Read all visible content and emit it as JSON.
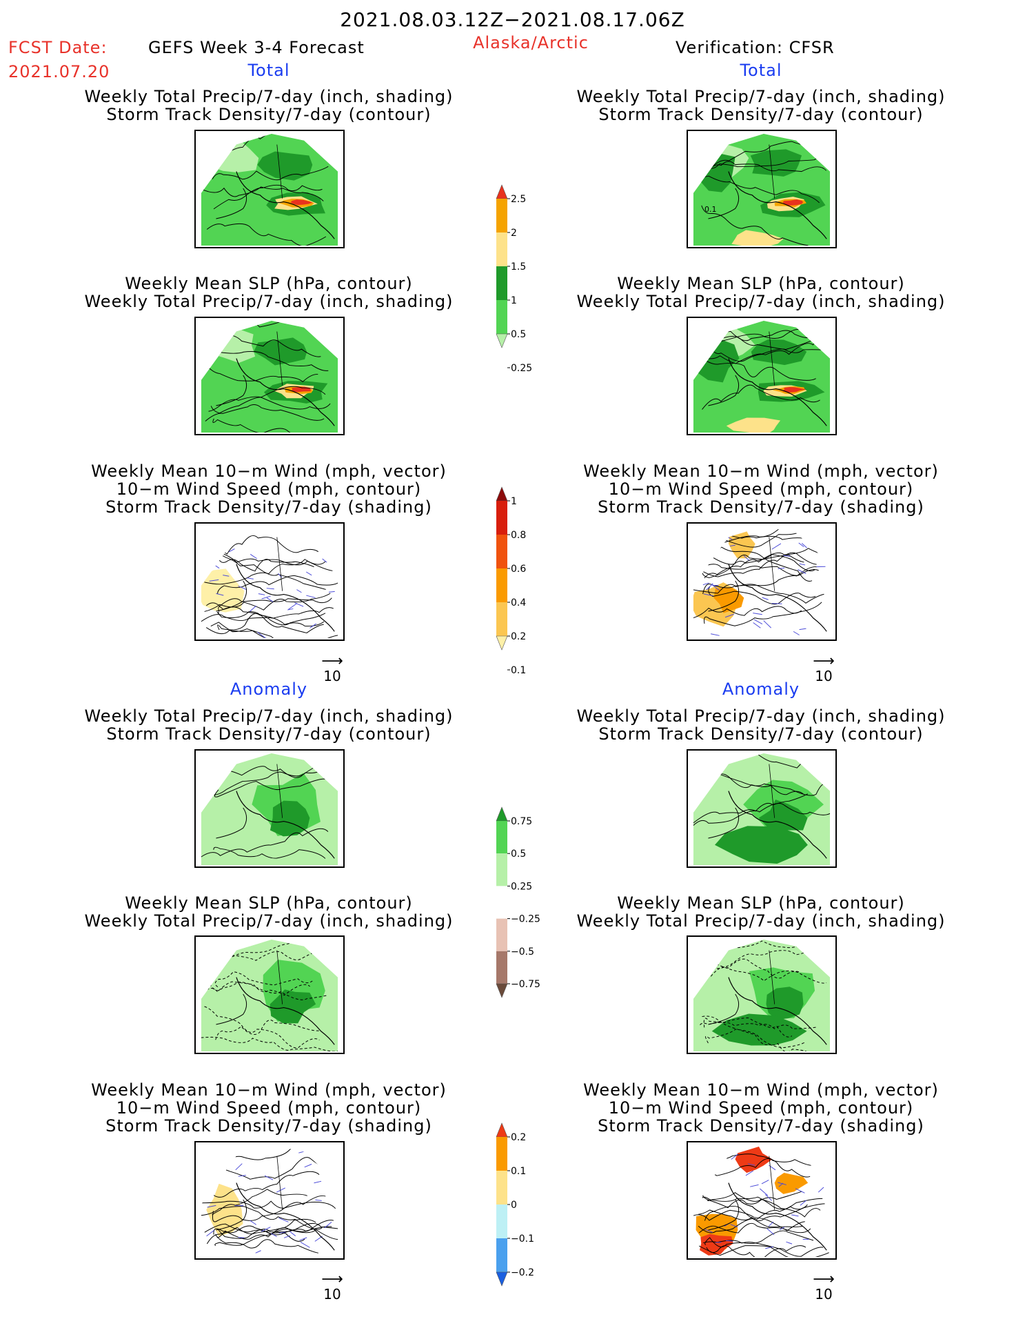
{
  "header": {
    "date_range": "2021.08.03.12Z−2021.08.17.06Z",
    "fcst_label": "FCST Date:",
    "fcst_date": "2021.07.20",
    "forecast_title": "GEFS Week 3-4 Forecast",
    "region": "Alaska/Arctic",
    "verification": "Verification: CFSR"
  },
  "sections": {
    "total": "Total",
    "anomaly": "Anomaly"
  },
  "panel_titles": {
    "precip_storm": [
      "Weekly Total Precip/7-day (inch, shading)",
      "Storm Track Density/7-day (contour)"
    ],
    "slp_precip": [
      "Weekly Mean SLP (hPa, contour)",
      "Weekly Total Precip/7-day (inch, shading)"
    ],
    "wind_storm": [
      "Weekly Mean 10−m Wind (mph, vector)",
      "10−m Wind Speed (mph, contour)",
      "Storm Track Density/7-day (shading)"
    ]
  },
  "vector_ref": "10",
  "contour_label": "0.1",
  "colorbars": {
    "precip_total": {
      "labels": [
        "2.5",
        "2",
        "1.5",
        "1",
        "0.5",
        "0.25"
      ],
      "colors": [
        "#e8321e",
        "#f5a300",
        "#fde28a",
        "#1f9a2a",
        "#52d453",
        "#b6f0a8"
      ]
    },
    "storm_total": {
      "labels": [
        "1",
        "0.8",
        "0.6",
        "0.4",
        "0.2",
        "0.1"
      ],
      "colors": [
        "#8c0b0b",
        "#d81e0c",
        "#f0520d",
        "#fa9a00",
        "#fbc651",
        "#fef0a8"
      ]
    },
    "precip_anom": {
      "labels": [
        "0.75",
        "0.5",
        "0.25",
        "−0.25",
        "−0.5",
        "−0.75"
      ],
      "colors": [
        "#1f9a2a",
        "#52d453",
        "#b6f0a8",
        "#ffffff",
        "#e8c2b4",
        "#a6786a",
        "#6a4a3a"
      ]
    },
    "storm_anom": {
      "labels": [
        "0.2",
        "0.1",
        "0",
        "−0.1",
        "−0.2"
      ],
      "colors": [
        "#ee3a16",
        "#fa9a00",
        "#fde28a",
        "#bdf0f5",
        "#4aa0ee",
        "#1a5fe0"
      ]
    }
  }
}
